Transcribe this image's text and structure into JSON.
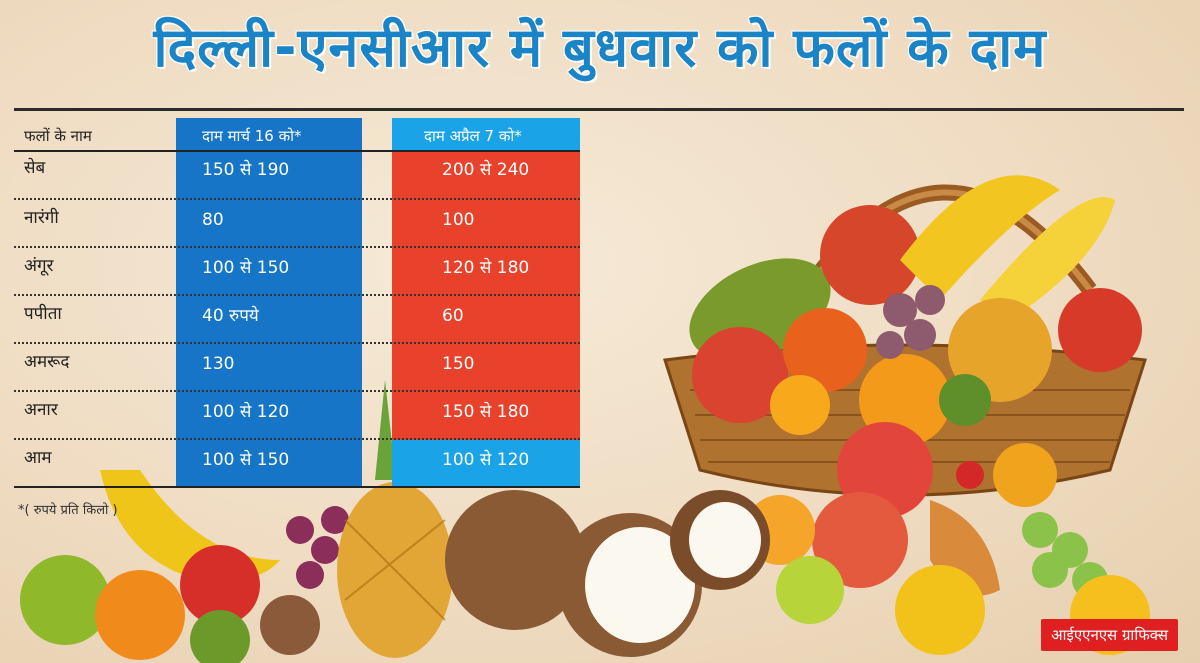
{
  "title": "दिल्ली-एनसीआर में बुधवार को फलों के दाम",
  "table": {
    "headers": [
      "फलों के नाम",
      "दाम मार्च 16 को*",
      "दाम अप्रैल 7 को*"
    ],
    "rows": [
      {
        "fruit": "सेब",
        "march": "150 से 190",
        "april": "200 से 240"
      },
      {
        "fruit": "नारंगी",
        "march": "80",
        "april": "100"
      },
      {
        "fruit": "अंगूर",
        "march": "100 से 150",
        "april": "120 से 180"
      },
      {
        "fruit": "पपीता",
        "march": "40 रुपये",
        "april": "60"
      },
      {
        "fruit": "अमरूद",
        "march": "130",
        "april": "150"
      },
      {
        "fruit": "अनार",
        "march": "100 से 120",
        "april": "150 से 180"
      },
      {
        "fruit": "आम",
        "march": "100 से 150",
        "april": "100 से 120"
      }
    ]
  },
  "footnote": "*( रुपये प्रति किलो )",
  "credit": "आईएएनएस ग्राफिक्स",
  "colors": {
    "title": "#1a84c7",
    "march_column": "#1675c6",
    "april_column": "#e8412c",
    "highlight": "#1aa3e6"
  }
}
